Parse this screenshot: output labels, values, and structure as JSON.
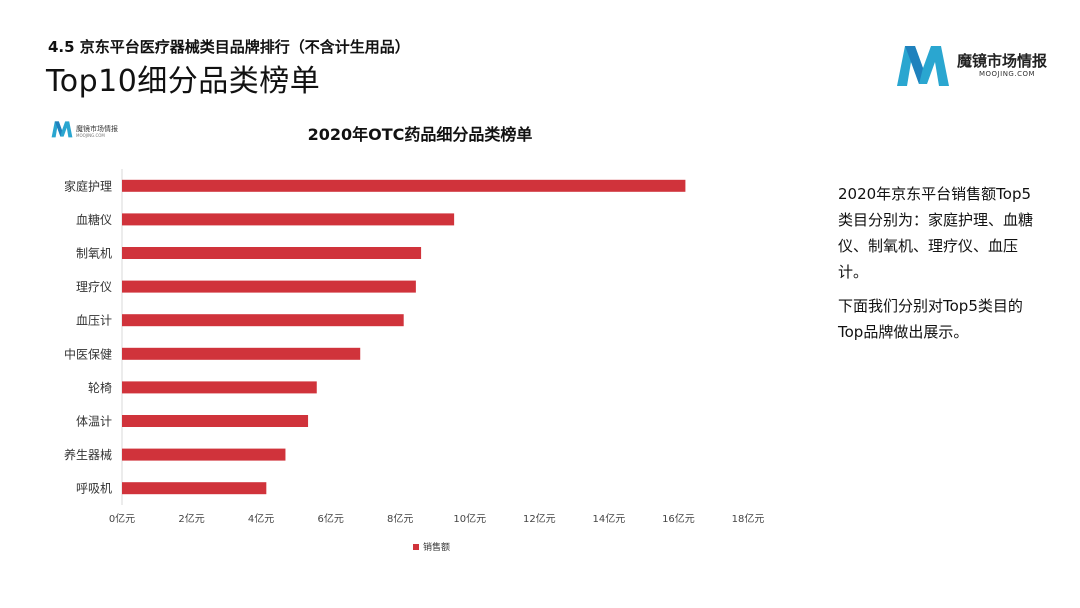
{
  "header": {
    "subtitle": "4.5 京东平台医疗器械类目品牌排行（不含计生用品）",
    "title": "Top10细分品类榜单"
  },
  "logo": {
    "brand": "魔镜市场情报",
    "domain": "MOOJING.COM",
    "colors": [
      "#1e88c8",
      "#3cc3d6"
    ]
  },
  "side_text": {
    "paragraph1": "2020年京东平台销售额Top5类目分别为：家庭护理、血糖仪、制氧机、理疗仪、血压计。",
    "paragraph2": "下面我们分别对Top5类目的Top品牌做出展示。"
  },
  "chart_data": {
    "type": "bar",
    "orientation": "horizontal",
    "title": "2020年OTC药品细分品类榜单",
    "categories": [
      "家庭护理",
      "血糖仪",
      "制氧机",
      "理疗仪",
      "血压计",
      "中医保健",
      "轮椅",
      "体温计",
      "养生器械",
      "呼吸机"
    ],
    "series": [
      {
        "name": "销售额",
        "values": [
          16.2,
          9.55,
          8.6,
          8.45,
          8.1,
          6.85,
          5.6,
          5.35,
          4.7,
          4.15
        ],
        "color": "#d0333b"
      }
    ],
    "xlim": [
      0,
      18
    ],
    "x_ticks": [
      "0亿元",
      "2亿元",
      "4亿元",
      "6亿元",
      "8亿元",
      "10亿元",
      "12亿元",
      "14亿元",
      "16亿元",
      "18亿元"
    ],
    "legend_position": "bottom-center",
    "grid": false
  }
}
